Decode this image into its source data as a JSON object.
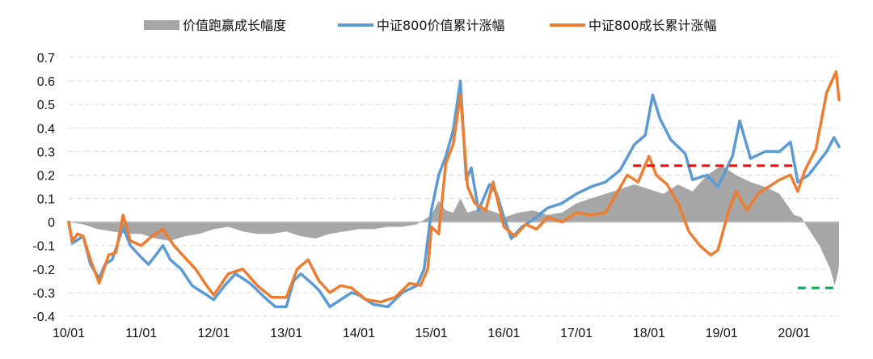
{
  "chart_data": {
    "type": "line",
    "ylim": [
      -0.4,
      0.7
    ],
    "yticks": [
      "0.7",
      "0.6",
      "0.5",
      "0.4",
      "0.3",
      "0.2",
      "0.1",
      "0",
      "-0.1",
      "-0.2",
      "-0.3",
      "-0.4"
    ],
    "ytick_values": [
      0.7,
      0.6,
      0.5,
      0.4,
      0.3,
      0.2,
      0.1,
      0,
      -0.1,
      -0.2,
      -0.3,
      -0.4
    ],
    "xticks": [
      "10/01",
      "11/01",
      "12/01",
      "13/01",
      "14/01",
      "15/01",
      "16/01",
      "17/01",
      "18/01",
      "19/01",
      "20/01"
    ],
    "xtick_years": [
      2010,
      2011,
      2012,
      2013,
      2014,
      2015,
      2016,
      2017,
      2018,
      2019,
      2020
    ],
    "x_range": [
      2010.0,
      2020.62
    ],
    "grid": "horizontal-dashed",
    "legend_position": "top",
    "series": [
      {
        "name": "价值跑赢成长幅度",
        "kind": "area",
        "color": "#a6a6a6",
        "points": [
          [
            2010.0,
            0
          ],
          [
            2010.2,
            -0.01
          ],
          [
            2010.4,
            -0.03
          ],
          [
            2010.6,
            -0.04
          ],
          [
            2010.8,
            -0.05
          ],
          [
            2011.0,
            -0.05
          ],
          [
            2011.2,
            -0.07
          ],
          [
            2011.4,
            -0.08
          ],
          [
            2011.6,
            -0.06
          ],
          [
            2011.8,
            -0.05
          ],
          [
            2012.0,
            -0.03
          ],
          [
            2012.2,
            -0.02
          ],
          [
            2012.4,
            -0.04
          ],
          [
            2012.6,
            -0.05
          ],
          [
            2012.8,
            -0.05
          ],
          [
            2013.0,
            -0.04
          ],
          [
            2013.2,
            -0.06
          ],
          [
            2013.4,
            -0.07
          ],
          [
            2013.6,
            -0.05
          ],
          [
            2013.8,
            -0.04
          ],
          [
            2014.0,
            -0.03
          ],
          [
            2014.2,
            -0.03
          ],
          [
            2014.4,
            -0.02
          ],
          [
            2014.6,
            -0.02
          ],
          [
            2014.8,
            -0.01
          ],
          [
            2015.0,
            0.03
          ],
          [
            2015.1,
            0.09
          ],
          [
            2015.2,
            0.05
          ],
          [
            2015.3,
            0.04
          ],
          [
            2015.4,
            0.1
          ],
          [
            2015.5,
            0.04
          ],
          [
            2015.7,
            0.06
          ],
          [
            2015.9,
            0.04
          ],
          [
            2016.0,
            0.02
          ],
          [
            2016.2,
            0.04
          ],
          [
            2016.4,
            0.05
          ],
          [
            2016.6,
            0.03
          ],
          [
            2016.8,
            0.04
          ],
          [
            2017.0,
            0.08
          ],
          [
            2017.2,
            0.1
          ],
          [
            2017.4,
            0.12
          ],
          [
            2017.6,
            0.14
          ],
          [
            2017.8,
            0.16
          ],
          [
            2018.0,
            0.14
          ],
          [
            2018.2,
            0.12
          ],
          [
            2018.4,
            0.16
          ],
          [
            2018.6,
            0.13
          ],
          [
            2018.8,
            0.2
          ],
          [
            2019.0,
            0.24
          ],
          [
            2019.2,
            0.2
          ],
          [
            2019.4,
            0.17
          ],
          [
            2019.6,
            0.15
          ],
          [
            2019.8,
            0.12
          ],
          [
            2020.0,
            0.03
          ],
          [
            2020.1,
            0.02
          ],
          [
            2020.2,
            -0.03
          ],
          [
            2020.35,
            -0.1
          ],
          [
            2020.5,
            -0.2
          ],
          [
            2020.56,
            -0.27
          ],
          [
            2020.6,
            -0.22
          ],
          [
            2020.62,
            -0.18
          ]
        ]
      },
      {
        "name": "中证800价值累计涨幅",
        "kind": "line",
        "color": "#5b9bd5",
        "points": [
          [
            2010.0,
            0
          ],
          [
            2010.05,
            -0.09
          ],
          [
            2010.1,
            -0.08
          ],
          [
            2010.2,
            -0.06
          ],
          [
            2010.3,
            -0.18
          ],
          [
            2010.42,
            -0.24
          ],
          [
            2010.5,
            -0.18
          ],
          [
            2010.6,
            -0.16
          ],
          [
            2010.75,
            -0.02
          ],
          [
            2010.85,
            -0.1
          ],
          [
            2011.0,
            -0.15
          ],
          [
            2011.1,
            -0.18
          ],
          [
            2011.2,
            -0.14
          ],
          [
            2011.3,
            -0.1
          ],
          [
            2011.4,
            -0.16
          ],
          [
            2011.55,
            -0.2
          ],
          [
            2011.7,
            -0.27
          ],
          [
            2011.85,
            -0.3
          ],
          [
            2012.0,
            -0.33
          ],
          [
            2012.15,
            -0.27
          ],
          [
            2012.3,
            -0.22
          ],
          [
            2012.5,
            -0.26
          ],
          [
            2012.7,
            -0.32
          ],
          [
            2012.85,
            -0.36
          ],
          [
            2013.0,
            -0.36
          ],
          [
            2013.1,
            -0.25
          ],
          [
            2013.2,
            -0.22
          ],
          [
            2013.35,
            -0.26
          ],
          [
            2013.45,
            -0.29
          ],
          [
            2013.6,
            -0.36
          ],
          [
            2013.75,
            -0.33
          ],
          [
            2013.9,
            -0.3
          ],
          [
            2014.0,
            -0.31
          ],
          [
            2014.2,
            -0.35
          ],
          [
            2014.4,
            -0.36
          ],
          [
            2014.6,
            -0.3
          ],
          [
            2014.8,
            -0.27
          ],
          [
            2014.9,
            -0.2
          ],
          [
            2015.0,
            0.05
          ],
          [
            2015.1,
            0.2
          ],
          [
            2015.2,
            0.28
          ],
          [
            2015.3,
            0.39
          ],
          [
            2015.4,
            0.6
          ],
          [
            2015.48,
            0.18
          ],
          [
            2015.55,
            0.23
          ],
          [
            2015.65,
            0.05
          ],
          [
            2015.8,
            0.16
          ],
          [
            2015.9,
            0.12
          ],
          [
            2016.0,
            0.02
          ],
          [
            2016.1,
            -0.07
          ],
          [
            2016.25,
            -0.02
          ],
          [
            2016.4,
            0.01
          ],
          [
            2016.6,
            0.06
          ],
          [
            2016.8,
            0.08
          ],
          [
            2017.0,
            0.12
          ],
          [
            2017.2,
            0.15
          ],
          [
            2017.4,
            0.17
          ],
          [
            2017.6,
            0.22
          ],
          [
            2017.8,
            0.33
          ],
          [
            2017.95,
            0.37
          ],
          [
            2018.05,
            0.54
          ],
          [
            2018.15,
            0.44
          ],
          [
            2018.3,
            0.35
          ],
          [
            2018.5,
            0.29
          ],
          [
            2018.6,
            0.18
          ],
          [
            2018.8,
            0.2
          ],
          [
            2018.95,
            0.15
          ],
          [
            2019.15,
            0.28
          ],
          [
            2019.25,
            0.43
          ],
          [
            2019.4,
            0.27
          ],
          [
            2019.6,
            0.3
          ],
          [
            2019.8,
            0.3
          ],
          [
            2019.95,
            0.34
          ],
          [
            2020.05,
            0.17
          ],
          [
            2020.2,
            0.2
          ],
          [
            2020.3,
            0.24
          ],
          [
            2020.45,
            0.3
          ],
          [
            2020.55,
            0.36
          ],
          [
            2020.62,
            0.32
          ]
        ]
      },
      {
        "name": "中证800成长累计涨幅",
        "kind": "line",
        "color": "#ed7d31",
        "points": [
          [
            2010.0,
            0
          ],
          [
            2010.05,
            -0.08
          ],
          [
            2010.12,
            -0.05
          ],
          [
            2010.2,
            -0.06
          ],
          [
            2010.3,
            -0.16
          ],
          [
            2010.42,
            -0.26
          ],
          [
            2010.55,
            -0.14
          ],
          [
            2010.65,
            -0.13
          ],
          [
            2010.75,
            0.03
          ],
          [
            2010.85,
            -0.08
          ],
          [
            2011.0,
            -0.1
          ],
          [
            2011.15,
            -0.06
          ],
          [
            2011.3,
            -0.03
          ],
          [
            2011.45,
            -0.1
          ],
          [
            2011.6,
            -0.15
          ],
          [
            2011.75,
            -0.2
          ],
          [
            2011.9,
            -0.27
          ],
          [
            2012.0,
            -0.31
          ],
          [
            2012.2,
            -0.22
          ],
          [
            2012.4,
            -0.2
          ],
          [
            2012.6,
            -0.27
          ],
          [
            2012.8,
            -0.32
          ],
          [
            2013.0,
            -0.32
          ],
          [
            2013.15,
            -0.2
          ],
          [
            2013.3,
            -0.16
          ],
          [
            2013.45,
            -0.25
          ],
          [
            2013.6,
            -0.3
          ],
          [
            2013.75,
            -0.27
          ],
          [
            2013.9,
            -0.28
          ],
          [
            2014.1,
            -0.33
          ],
          [
            2014.3,
            -0.34
          ],
          [
            2014.5,
            -0.32
          ],
          [
            2014.7,
            -0.26
          ],
          [
            2014.85,
            -0.27
          ],
          [
            2014.95,
            -0.2
          ],
          [
            2015.0,
            -0.02
          ],
          [
            2015.1,
            -0.05
          ],
          [
            2015.2,
            0.25
          ],
          [
            2015.3,
            0.33
          ],
          [
            2015.4,
            0.54
          ],
          [
            2015.5,
            0.15
          ],
          [
            2015.6,
            0.08
          ],
          [
            2015.75,
            0.05
          ],
          [
            2015.85,
            0.17
          ],
          [
            2016.0,
            -0.02
          ],
          [
            2016.15,
            -0.06
          ],
          [
            2016.3,
            -0.01
          ],
          [
            2016.45,
            -0.03
          ],
          [
            2016.6,
            0.02
          ],
          [
            2016.8,
            0.0
          ],
          [
            2017.0,
            0.04
          ],
          [
            2017.2,
            0.03
          ],
          [
            2017.4,
            0.04
          ],
          [
            2017.55,
            0.12
          ],
          [
            2017.7,
            0.2
          ],
          [
            2017.85,
            0.17
          ],
          [
            2018.0,
            0.28
          ],
          [
            2018.1,
            0.2
          ],
          [
            2018.25,
            0.16
          ],
          [
            2018.4,
            0.08
          ],
          [
            2018.55,
            -0.04
          ],
          [
            2018.7,
            -0.1
          ],
          [
            2018.85,
            -0.14
          ],
          [
            2018.95,
            -0.12
          ],
          [
            2019.1,
            0.05
          ],
          [
            2019.2,
            0.13
          ],
          [
            2019.35,
            0.05
          ],
          [
            2019.5,
            0.12
          ],
          [
            2019.65,
            0.15
          ],
          [
            2019.8,
            0.18
          ],
          [
            2019.95,
            0.2
          ],
          [
            2020.05,
            0.13
          ],
          [
            2020.15,
            0.22
          ],
          [
            2020.3,
            0.31
          ],
          [
            2020.45,
            0.55
          ],
          [
            2020.58,
            0.64
          ],
          [
            2020.62,
            0.52
          ]
        ]
      }
    ],
    "reference_lines": [
      {
        "color": "#ff0000",
        "value": 0.24,
        "x_from": 2017.78,
        "x_to": 2020.05
      },
      {
        "color": "#00b050",
        "value": -0.28,
        "x_from": 2020.05,
        "x_to": 2020.62
      }
    ]
  }
}
